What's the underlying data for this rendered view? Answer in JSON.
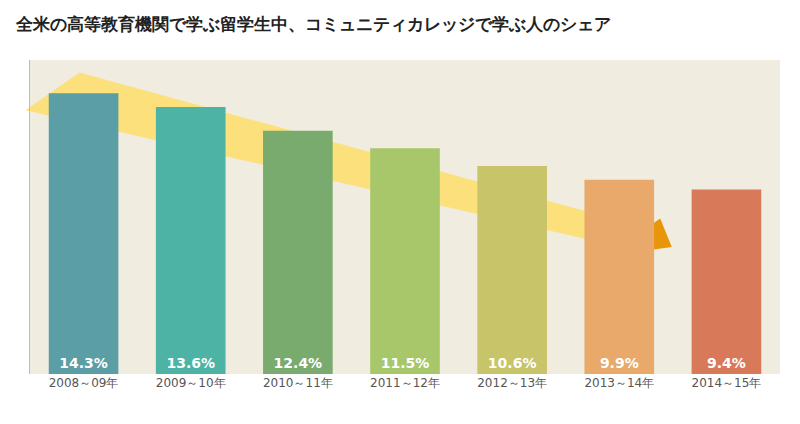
{
  "chart_data": {
    "type": "bar",
    "title": "全米の高等教育機関で学ぶ留学生中、コミュニティカレッジで学ぶ人のシェア",
    "categories": [
      "2008～09年",
      "2009～10年",
      "2010～11年",
      "2011～12年",
      "2012～13年",
      "2013～14年",
      "2014～15年"
    ],
    "values": [
      14.3,
      13.6,
      12.4,
      11.5,
      10.6,
      9.9,
      9.4
    ],
    "value_labels": [
      "14.3%",
      "13.6%",
      "12.4%",
      "11.5%",
      "10.6%",
      "9.9%",
      "9.4%"
    ],
    "data_labels": true,
    "colors": [
      "#5b9ea6",
      "#4db3a4",
      "#7aab6e",
      "#a8c76a",
      "#c8c46a",
      "#e8a96a",
      "#d87a5a"
    ],
    "ylim": [
      0,
      16
    ],
    "grid": false,
    "tick_labels": "x"
  }
}
